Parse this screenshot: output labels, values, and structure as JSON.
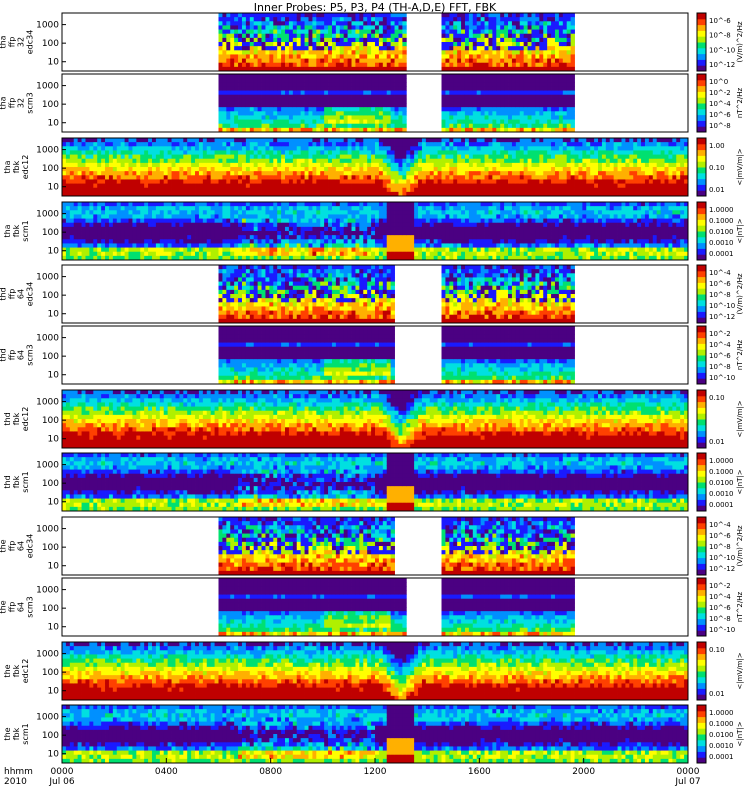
{
  "title": "Inner Probes: P5, P3, P4 (TH-A,D,E) FFT, FBK",
  "x_axis": {
    "row_label": "hhmm",
    "year_label": "2010",
    "ticks": [
      {
        "time": "0000",
        "date": "Jul 06"
      },
      {
        "time": "0400",
        "date": ""
      },
      {
        "time": "0800",
        "date": ""
      },
      {
        "time": "1200",
        "date": ""
      },
      {
        "time": "1600",
        "date": ""
      },
      {
        "time": "2000",
        "date": ""
      },
      {
        "time": "0000",
        "date": "Jul 07"
      }
    ]
  },
  "colors": {
    "colormap": [
      "#4b0082",
      "#1a1aff",
      "#0090ff",
      "#00e0e0",
      "#00e070",
      "#b0f000",
      "#ffff00",
      "#ffb000",
      "#ff4000",
      "#c00000"
    ],
    "background": "#ffffff",
    "frame": "#000000"
  },
  "chart_data": [
    {
      "type": "heatmap",
      "probe": "tha",
      "ylabel": [
        "tha",
        "ffp",
        "32",
        "edc34"
      ],
      "yticks": [
        "1000",
        "100",
        "10"
      ],
      "cbar_ticks": [
        "10^-6",
        "10^-8",
        "10^-10",
        "10^-12"
      ],
      "cbar_label": "(V/m)^2/Hz",
      "x_range_hours": [
        0,
        24
      ],
      "data_intervals_hours": [
        [
          6.0,
          13.2
        ],
        [
          14.5,
          19.7
        ]
      ],
      "intensity": "bursty"
    },
    {
      "type": "heatmap",
      "probe": "tha",
      "ylabel": [
        "tha",
        "ffp",
        "32",
        "scm3"
      ],
      "yticks": [
        "1000",
        "100",
        "10"
      ],
      "cbar_ticks": [
        "10^0",
        "10^-2",
        "10^-4",
        "10^-6",
        "10^-8"
      ],
      "cbar_label": "nT^2/Hz",
      "x_range_hours": [
        0,
        24
      ],
      "data_intervals_hours": [
        [
          6.0,
          13.2
        ],
        [
          14.5,
          19.7
        ]
      ],
      "intensity": "low"
    },
    {
      "type": "heatmap",
      "probe": "tha",
      "ylabel": [
        "tha",
        "fbk",
        "edc12"
      ],
      "yticks": [
        "1000",
        "100",
        "10"
      ],
      "cbar_ticks": [
        "1.00",
        "0.10",
        "0.01"
      ],
      "cbar_label": "<|mV/m|>",
      "x_range_hours": [
        0,
        24
      ],
      "data_intervals_hours": [
        [
          0,
          24
        ]
      ],
      "intensity": "fbk_e",
      "dip_hour": 13.0
    },
    {
      "type": "heatmap",
      "probe": "tha",
      "ylabel": [
        "tha",
        "fbk",
        "scm1"
      ],
      "yticks": [
        "1000",
        "100",
        "10"
      ],
      "cbar_ticks": [
        "1.0000",
        "0.1000",
        "0.0100",
        "0.0010",
        "0.0001"
      ],
      "cbar_label": "<|nT|>",
      "x_range_hours": [
        0,
        24
      ],
      "data_intervals_hours": [
        [
          0,
          24
        ]
      ],
      "intensity": "fbk_b",
      "dip_hour": 13.0
    },
    {
      "type": "heatmap",
      "probe": "thd",
      "ylabel": [
        "thd",
        "ffp",
        "64",
        "edc34"
      ],
      "yticks": [
        "1000",
        "100",
        "10"
      ],
      "cbar_ticks": [
        "10^-4",
        "10^-6",
        "10^-8",
        "10^-10",
        "10^-12"
      ],
      "cbar_label": "(V/m)^2/Hz",
      "x_range_hours": [
        0,
        24
      ],
      "data_intervals_hours": [
        [
          6.0,
          12.8
        ],
        [
          14.5,
          19.7
        ]
      ],
      "intensity": "bursty"
    },
    {
      "type": "heatmap",
      "probe": "thd",
      "ylabel": [
        "thd",
        "ffp",
        "64",
        "scm3"
      ],
      "yticks": [
        "1000",
        "100",
        "10"
      ],
      "cbar_ticks": [
        "10^-2",
        "10^-4",
        "10^-6",
        "10^-8",
        "10^-10"
      ],
      "cbar_label": "nT^2/Hz",
      "x_range_hours": [
        0,
        24
      ],
      "data_intervals_hours": [
        [
          6.0,
          12.8
        ],
        [
          14.5,
          19.7
        ]
      ],
      "intensity": "low"
    },
    {
      "type": "heatmap",
      "probe": "thd",
      "ylabel": [
        "thd",
        "fbk",
        "edc12"
      ],
      "yticks": [
        "1000",
        "100",
        "10"
      ],
      "cbar_ticks": [
        "0.10",
        "0.01"
      ],
      "cbar_label": "<|mV/m|>",
      "x_range_hours": [
        0,
        24
      ],
      "data_intervals_hours": [
        [
          0,
          24
        ]
      ],
      "intensity": "fbk_e",
      "dip_hour": 13.0
    },
    {
      "type": "heatmap",
      "probe": "thd",
      "ylabel": [
        "thd",
        "fbk",
        "scm1"
      ],
      "yticks": [
        "1000",
        "100",
        "10"
      ],
      "cbar_ticks": [
        "1.0000",
        "0.1000",
        "0.0100",
        "0.0010",
        "0.0001"
      ],
      "cbar_label": "<|nT|>",
      "x_range_hours": [
        0,
        24
      ],
      "data_intervals_hours": [
        [
          0,
          24
        ]
      ],
      "intensity": "fbk_b",
      "dip_hour": 13.0
    },
    {
      "type": "heatmap",
      "probe": "the",
      "ylabel": [
        "the",
        "ffp",
        "64",
        "edc34"
      ],
      "yticks": [
        "1000",
        "100",
        "10"
      ],
      "cbar_ticks": [
        "10^-4",
        "10^-6",
        "10^-8",
        "10^-10",
        "10^-12"
      ],
      "cbar_label": "(V/m)^2/Hz",
      "x_range_hours": [
        0,
        24
      ],
      "data_intervals_hours": [
        [
          6.0,
          12.8
        ],
        [
          14.5,
          19.7
        ]
      ],
      "intensity": "bursty"
    },
    {
      "type": "heatmap",
      "probe": "the",
      "ylabel": [
        "the",
        "ffp",
        "64",
        "scm3"
      ],
      "yticks": [
        "1000",
        "100",
        "10"
      ],
      "cbar_ticks": [
        "10^-2",
        "10^-4",
        "10^-6",
        "10^-8",
        "10^-10"
      ],
      "cbar_label": "nT^2/Hz",
      "x_range_hours": [
        0,
        24
      ],
      "data_intervals_hours": [
        [
          6.0,
          13.2
        ],
        [
          14.5,
          19.7
        ]
      ],
      "intensity": "low"
    },
    {
      "type": "heatmap",
      "probe": "the",
      "ylabel": [
        "the",
        "fbk",
        "edc12"
      ],
      "yticks": [
        "1000",
        "100",
        "10"
      ],
      "cbar_ticks": [
        "0.10",
        "0.01"
      ],
      "cbar_label": "<|mV/m|>",
      "x_range_hours": [
        0,
        24
      ],
      "data_intervals_hours": [
        [
          0,
          24
        ]
      ],
      "intensity": "fbk_e",
      "dip_hour": 13.0
    },
    {
      "type": "heatmap",
      "probe": "the",
      "ylabel": [
        "the",
        "fbk",
        "scm1"
      ],
      "yticks": [
        "1000",
        "100",
        "10"
      ],
      "cbar_ticks": [
        "1.0000",
        "0.1000",
        "0.0100",
        "0.0010",
        "0.0001"
      ],
      "cbar_label": "<|nT|>",
      "x_range_hours": [
        0,
        24
      ],
      "data_intervals_hours": [
        [
          0,
          24
        ]
      ],
      "intensity": "fbk_b",
      "dip_hour": 13.0
    }
  ]
}
